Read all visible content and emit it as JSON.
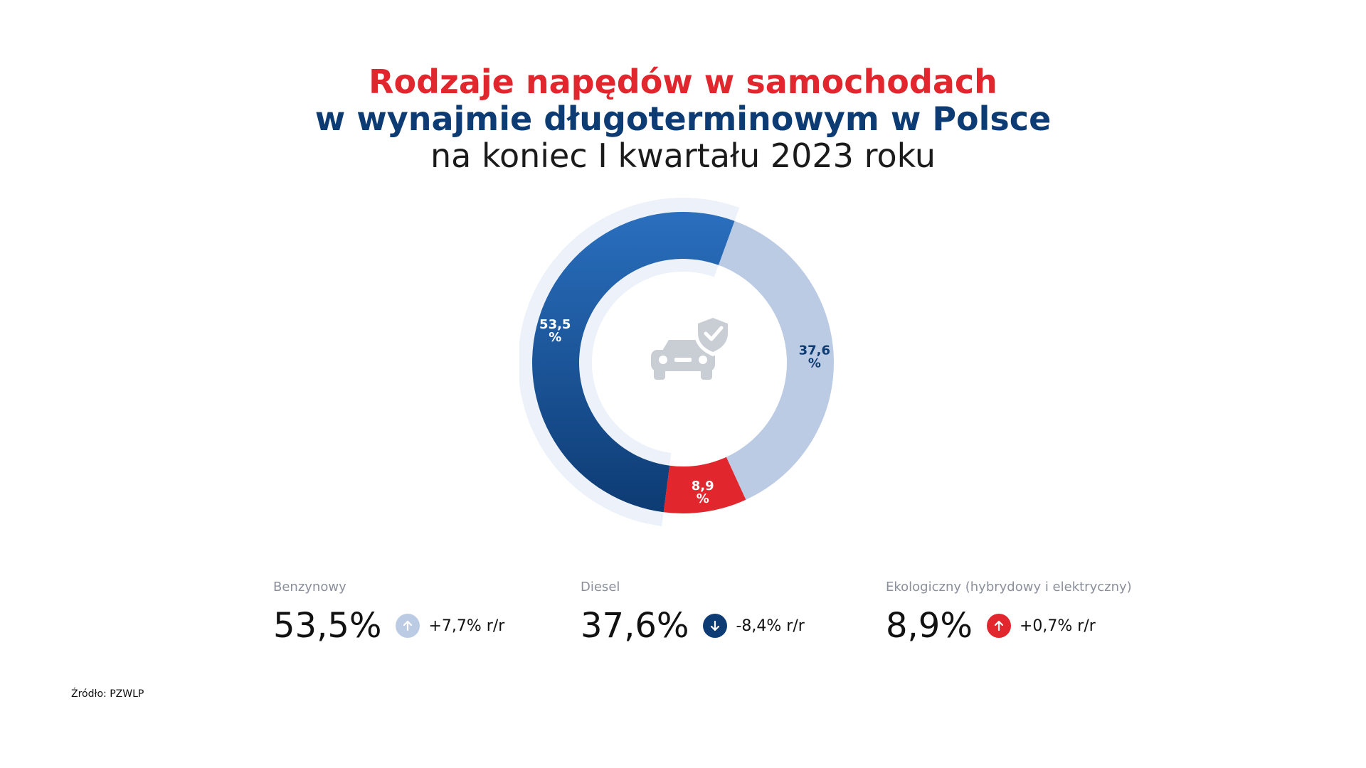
{
  "title": {
    "line1": "Rodzaje napędów w samochodach",
    "line2": "w wynajmie długoterminowym w Polsce",
    "line3": "na koniec I kwartału 2023 roku"
  },
  "chart_data": {
    "type": "pie",
    "title": "Rodzaje napędów w samochodach w wynajmie długoterminowym w Polsce na koniec I kwartału 2023 roku",
    "categories": [
      "Benzynowy",
      "Diesel",
      "Ekologiczny (hybrydowy i elektryczny)"
    ],
    "values": [
      53.5,
      37.6,
      8.9
    ],
    "slice_labels": [
      "53,5\n%",
      "37,6\n%",
      "8,9\n%"
    ],
    "colors": [
      "#0d3b73",
      "#bccbe4",
      "#e1262d"
    ],
    "gradient_colors": [
      "#2a6fbe",
      "#0d3b73"
    ],
    "label_colors": [
      "#ffffff",
      "#0d3b73",
      "#ffffff"
    ],
    "center_icon": "car-shield-check-icon"
  },
  "stats": [
    {
      "label": "Benzynowy",
      "value": "53,5%",
      "change": "+7,7% r/r",
      "direction": "up",
      "badge_color": "#bccbe4"
    },
    {
      "label": "Diesel",
      "value": "37,6%",
      "change": "-8,4% r/r",
      "direction": "down",
      "badge_color": "#0d3b73"
    },
    {
      "label": "Ekologiczny (hybrydowy i elektryczny)",
      "value": "8,9%",
      "change": "+0,7% r/r",
      "direction": "up",
      "badge_color": "#e1262d"
    }
  ],
  "source": "Źródło: PZWLP"
}
